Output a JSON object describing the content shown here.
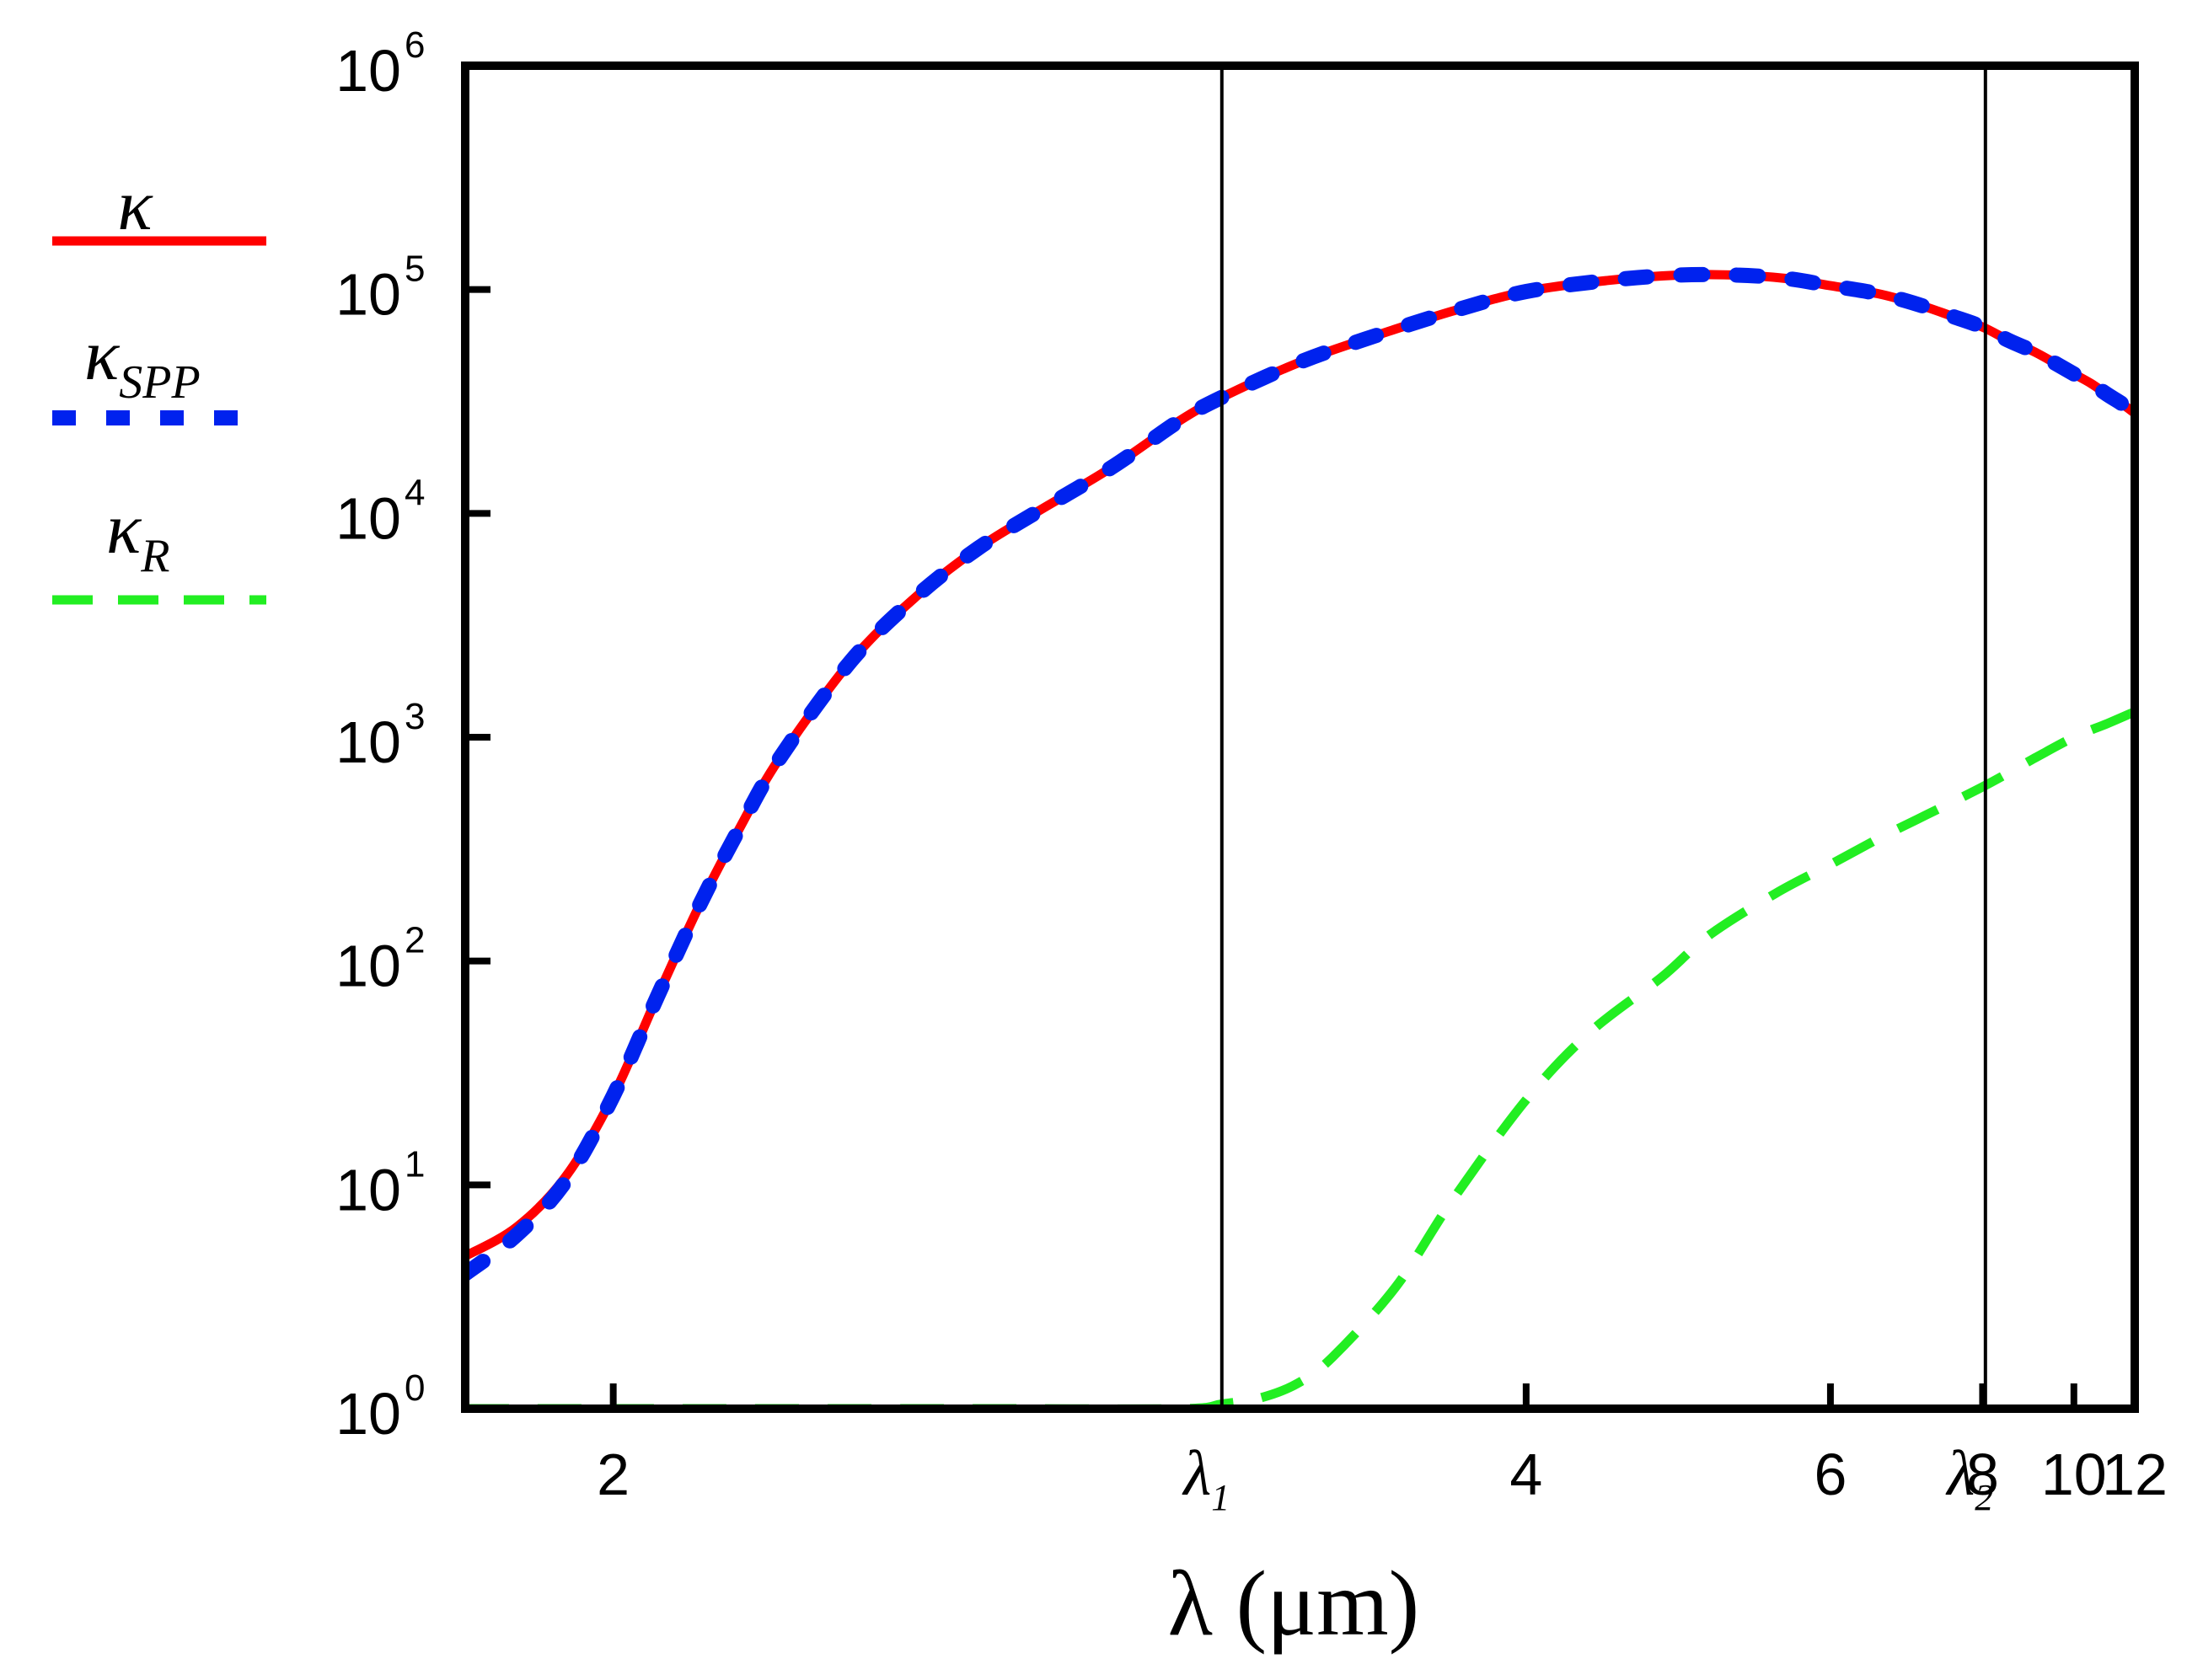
{
  "chart_data": {
    "type": "line",
    "title": "",
    "xlabel": "λ (μm)",
    "ylabel": "",
    "xscale": "reciprocal",
    "yscale": "log",
    "xlim": [
      1.85,
      12
    ],
    "ylim": [
      1,
      1000000
    ],
    "x_ticks": [
      {
        "value": 2,
        "label": "2"
      },
      {
        "value": 4,
        "label": "4"
      },
      {
        "value": 6,
        "label": "6"
      },
      {
        "value": 8,
        "label": "8"
      },
      {
        "value": 10,
        "label": "10"
      },
      {
        "value": 12,
        "label": "12"
      }
    ],
    "y_ticks": [
      {
        "value": 1,
        "base": "10",
        "exp": "0"
      },
      {
        "value": 10,
        "base": "10",
        "exp": "1"
      },
      {
        "value": 100,
        "base": "10",
        "exp": "2"
      },
      {
        "value": 1000,
        "base": "10",
        "exp": "3"
      },
      {
        "value": 10000,
        "base": "10",
        "exp": "4"
      },
      {
        "value": 100000,
        "base": "10",
        "exp": "5"
      },
      {
        "value": 1000000,
        "base": "10",
        "exp": "6"
      }
    ],
    "vlines": [
      {
        "x": 3.0,
        "label": "λ",
        "sub": "1"
      },
      {
        "x": 8.05,
        "label": "λ",
        "sub": "2"
      }
    ],
    "series": [
      {
        "name": "κ",
        "style": "solid",
        "color": "#ff0000",
        "x": [
          1.85,
          1.9,
          1.95,
          2.0,
          2.05,
          2.1,
          2.15,
          2.2,
          2.3,
          2.4,
          2.5,
          2.6,
          2.75,
          2.9,
          3.0,
          3.2,
          3.4,
          3.7,
          4.0,
          4.4,
          4.8,
          5.2,
          5.6,
          6.0,
          6.5,
          7.0,
          7.5,
          8.0,
          8.5,
          9.0,
          9.5,
          10.0,
          10.5,
          11.0,
          11.5,
          12.0
        ],
        "y": [
          4.8,
          6.5,
          11,
          25,
          70,
          180,
          400,
          800,
          2200,
          4300,
          7000,
          10000,
          16000,
          26000,
          33000,
          47000,
          60000,
          80000,
          98000,
          110000,
          116000,
          116000,
          112000,
          104000,
          96000,
          86000,
          76000,
          68000,
          59000,
          53000,
          47000,
          42000,
          38000,
          34000,
          31000,
          28000
        ]
      },
      {
        "name": "κSPP",
        "style": "dotted",
        "color": "#0022ee",
        "x": [
          1.85,
          1.9,
          1.95,
          2.0,
          2.05,
          2.1,
          2.15,
          2.2,
          2.3,
          2.4,
          2.5,
          2.6,
          2.75,
          2.9,
          3.0,
          3.2,
          3.4,
          3.7,
          4.0,
          4.4,
          4.8,
          5.2,
          5.6,
          6.0,
          6.5,
          7.0,
          7.5,
          8.0,
          8.5,
          9.0,
          9.5,
          10.0,
          10.5,
          11.0,
          11.5,
          12.0
        ],
        "y": [
          4.0,
          6.0,
          10.5,
          25,
          70,
          180,
          400,
          800,
          2200,
          4300,
          7000,
          10000,
          16000,
          26000,
          33000,
          47000,
          60000,
          80000,
          98000,
          110000,
          116000,
          116000,
          112000,
          104000,
          96000,
          86000,
          76000,
          68000,
          59000,
          53000,
          47000,
          42000,
          38000,
          34000,
          31000,
          28000
        ]
      },
      {
        "name": "κR",
        "style": "dashed",
        "color": "#22ee22",
        "x": [
          1.85,
          2.0,
          2.5,
          2.9,
          3.0,
          3.1,
          3.2,
          3.3,
          3.5,
          3.7,
          4.0,
          4.3,
          4.7,
          5.0,
          5.5,
          6.0,
          6.5,
          7.0,
          8.0,
          9.0,
          10.0,
          11.0,
          12.0
        ],
        "y": [
          1,
          1,
          1,
          1.0,
          1.05,
          1.12,
          1.3,
          1.7,
          3.5,
          8.5,
          24,
          48,
          85,
          130,
          200,
          270,
          350,
          430,
          600,
          800,
          1000,
          1150,
          1300
        ]
      }
    ]
  }
}
